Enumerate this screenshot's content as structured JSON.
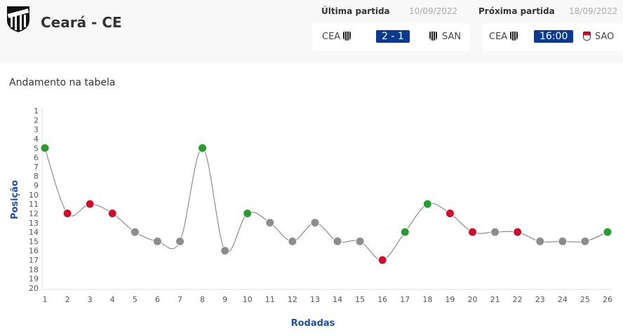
{
  "header": {
    "team": "Ceará - CE",
    "logo_text": "CEARÁ"
  },
  "last_match": {
    "label": "Última partida",
    "date": "10/09/2022",
    "home": "CEA",
    "score": "2 - 1",
    "away": "SAN"
  },
  "next_match": {
    "label": "Próxima partida",
    "date": "18/09/2022",
    "home": "CEA",
    "time": "16:00",
    "away": "SAO"
  },
  "chart_data": {
    "type": "line",
    "title": "Andamento na tabela",
    "xlabel": "Rodadas",
    "ylabel": "Posição",
    "x": [
      1,
      2,
      3,
      4,
      5,
      6,
      7,
      8,
      9,
      10,
      11,
      12,
      13,
      14,
      15,
      16,
      17,
      18,
      19,
      20,
      21,
      22,
      23,
      24,
      25,
      26
    ],
    "values": [
      5,
      12,
      11,
      12,
      14,
      15,
      15,
      5,
      16,
      12,
      13,
      15,
      13,
      15,
      15,
      17,
      14,
      11,
      12,
      14,
      14,
      14,
      15,
      15,
      15,
      14
    ],
    "results": [
      "win",
      "loss",
      "loss",
      "loss",
      "draw",
      "draw",
      "draw",
      "win",
      "draw",
      "win",
      "draw",
      "draw",
      "draw",
      "draw",
      "draw",
      "loss",
      "win",
      "win",
      "loss",
      "loss",
      "draw",
      "loss",
      "draw",
      "draw",
      "draw",
      "win"
    ],
    "ylim": [
      1,
      20
    ],
    "y_inverted": true,
    "colors": {
      "win": "#2b9a35",
      "loss": "#c8102e",
      "draw": "#8c8c8c",
      "line": "#777777"
    }
  }
}
